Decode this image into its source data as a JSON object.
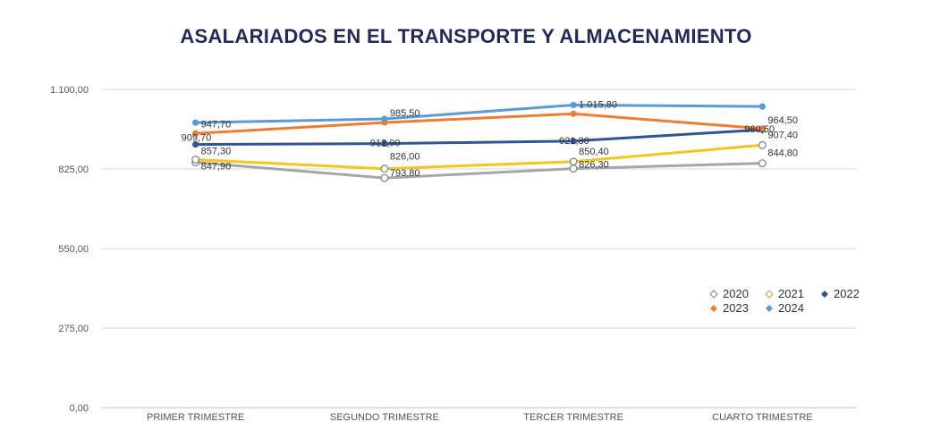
{
  "chart_data": {
    "type": "line",
    "title": "ASALARIADOS EN EL TRANSPORTE Y ALMACENAMIENTO",
    "categories": [
      "PRIMER TRIMESTRE",
      "SEGUNDO TRIMESTRE",
      "TERCER TRIMESTRE",
      "CUARTO TRIMESTRE"
    ],
    "ylim": [
      0,
      1100
    ],
    "yticks": [
      0,
      275,
      550,
      825,
      1100
    ],
    "ytick_labels": [
      "0,00",
      "275,00",
      "550,00",
      "825,00",
      "1.100,00"
    ],
    "grid": true,
    "legend": "right",
    "series": [
      {
        "name": "2020",
        "color": "#a6a6a6",
        "marker": "hollow",
        "values": [
          847.9,
          793.8,
          826.3,
          844.8
        ],
        "labels": [
          "847,90",
          "793,80",
          "826,30",
          "844,80"
        ]
      },
      {
        "name": "2021",
        "color": "#f5c518",
        "marker": "hollow",
        "values": [
          857.3,
          826.0,
          850.4,
          907.4
        ],
        "labels": [
          "857,30",
          "826,00",
          "850,40",
          "907,40"
        ]
      },
      {
        "name": "2022",
        "color": "#2f5597",
        "marker": "solid",
        "values": [
          909.7,
          912.9,
          921.3,
          960.5
        ],
        "labels": [
          "909,70",
          "912,90",
          "921,30",
          "960,50"
        ]
      },
      {
        "name": "2023",
        "color": "#ed7d31",
        "marker": "solid",
        "values": [
          947.7,
          985.5,
          1015.8,
          964.5
        ],
        "labels": [
          "947,70",
          "985,50",
          "1.015,80",
          "964,50"
        ]
      },
      {
        "name": "2024",
        "color": "#5b9bd5",
        "marker": "solid",
        "values": [
          985.0,
          998.0,
          1046.0,
          1041.0
        ],
        "labels": []
      }
    ]
  }
}
